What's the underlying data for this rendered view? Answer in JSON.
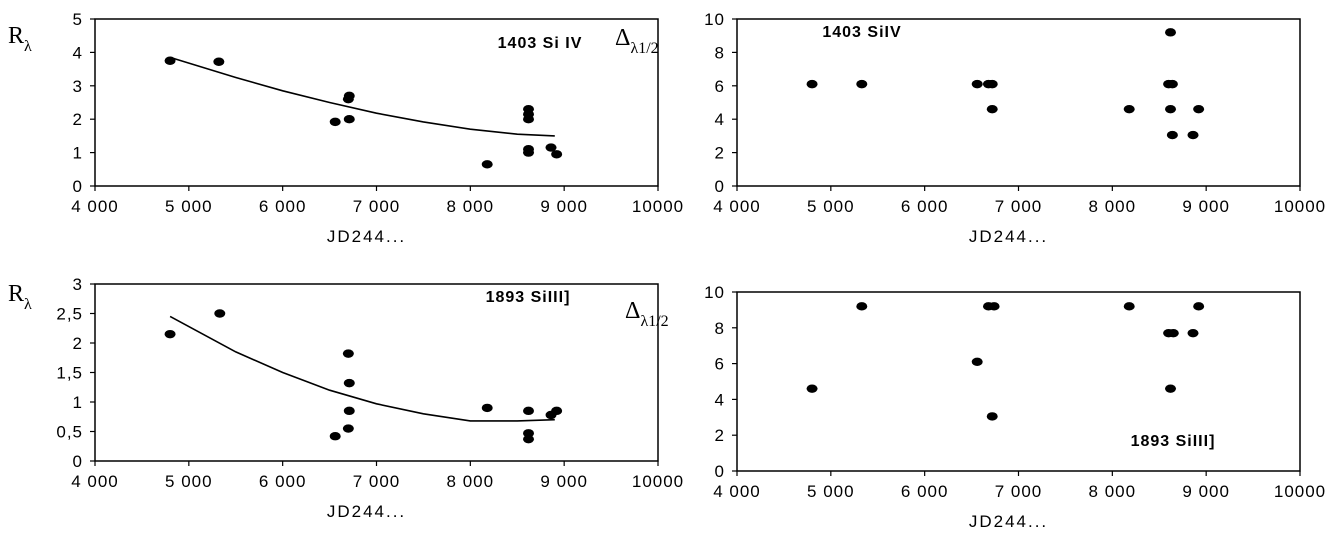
{
  "chart_data": [
    {
      "type": "scatter",
      "ylabel": "Rλ",
      "xlabel": "JD244...",
      "annotation": "1403 Si IV",
      "xlim": [
        4000,
        10000
      ],
      "ylim": [
        0,
        5
      ],
      "x_ticks": [
        "4 000",
        "5 000",
        "6 000",
        "7 000",
        "8 000",
        "9 000",
        "10000"
      ],
      "y_ticks": [
        "0",
        "1",
        "2",
        "3",
        "4",
        "5"
      ],
      "points": [
        {
          "x": 4800,
          "y": 3.75
        },
        {
          "x": 5320,
          "y": 3.72
        },
        {
          "x": 6560,
          "y": 1.92
        },
        {
          "x": 6700,
          "y": 2.6
        },
        {
          "x": 6710,
          "y": 2.7
        },
        {
          "x": 6710,
          "y": 2.0
        },
        {
          "x": 8180,
          "y": 0.65
        },
        {
          "x": 8620,
          "y": 2.3
        },
        {
          "x": 8620,
          "y": 2.15
        },
        {
          "x": 8620,
          "y": 2.0
        },
        {
          "x": 8620,
          "y": 1.1
        },
        {
          "x": 8620,
          "y": 1.0
        },
        {
          "x": 8860,
          "y": 1.15
        },
        {
          "x": 8920,
          "y": 0.95
        }
      ],
      "trend": {
        "x": [
          4800,
          5500,
          6000,
          6500,
          7000,
          7500,
          8000,
          8500,
          8900
        ],
        "y": [
          3.85,
          3.25,
          2.85,
          2.5,
          2.18,
          1.92,
          1.7,
          1.55,
          1.5
        ]
      }
    },
    {
      "type": "scatter",
      "ylabel": "Δλ1/2",
      "xlabel": "JD244...",
      "annotation": "1403 SiIV",
      "xlim": [
        4000,
        10000
      ],
      "ylim": [
        0,
        10
      ],
      "x_ticks": [
        "4 000",
        "5 000",
        "6 000",
        "7 000",
        "8 000",
        "9 000",
        "10000"
      ],
      "y_ticks": [
        "0",
        "2",
        "4",
        "6",
        "8",
        "10"
      ],
      "points": [
        {
          "x": 4800,
          "y": 6.1
        },
        {
          "x": 5330,
          "y": 6.1
        },
        {
          "x": 6560,
          "y": 6.1
        },
        {
          "x": 6680,
          "y": 6.1
        },
        {
          "x": 6720,
          "y": 6.1
        },
        {
          "x": 6720,
          "y": 4.6
        },
        {
          "x": 8180,
          "y": 4.6
        },
        {
          "x": 8620,
          "y": 9.2
        },
        {
          "x": 8600,
          "y": 6.1
        },
        {
          "x": 8640,
          "y": 6.1
        },
        {
          "x": 8620,
          "y": 4.6
        },
        {
          "x": 8640,
          "y": 3.05
        },
        {
          "x": 8860,
          "y": 3.05
        },
        {
          "x": 8920,
          "y": 4.6
        }
      ]
    },
    {
      "type": "scatter",
      "ylabel": "Rλ",
      "xlabel": "JD244...",
      "annotation": "1893 SiIII]",
      "xlim": [
        4000,
        10000
      ],
      "ylim": [
        0,
        3
      ],
      "x_ticks": [
        "4 000",
        "5 000",
        "6 000",
        "7 000",
        "8 000",
        "9 000",
        "10000"
      ],
      "y_ticks": [
        "0",
        "0,5",
        "1",
        "1,5",
        "2",
        "2,5",
        "3"
      ],
      "points": [
        {
          "x": 4800,
          "y": 2.15
        },
        {
          "x": 5330,
          "y": 2.5
        },
        {
          "x": 6560,
          "y": 0.42
        },
        {
          "x": 6700,
          "y": 1.82
        },
        {
          "x": 6710,
          "y": 1.32
        },
        {
          "x": 6710,
          "y": 0.85
        },
        {
          "x": 6700,
          "y": 0.55
        },
        {
          "x": 8180,
          "y": 0.9
        },
        {
          "x": 8620,
          "y": 0.85
        },
        {
          "x": 8620,
          "y": 0.47
        },
        {
          "x": 8620,
          "y": 0.37
        },
        {
          "x": 8860,
          "y": 0.78
        },
        {
          "x": 8920,
          "y": 0.85
        }
      ],
      "trend": {
        "x": [
          4800,
          5500,
          6000,
          6500,
          7000,
          7500,
          8000,
          8500,
          8900
        ],
        "y": [
          2.45,
          1.85,
          1.5,
          1.2,
          0.97,
          0.8,
          0.68,
          0.68,
          0.7
        ]
      }
    },
    {
      "type": "scatter",
      "ylabel": "Δλ1/2",
      "xlabel": "JD244...",
      "annotation": "1893 SiIII]",
      "xlim": [
        4000,
        10000
      ],
      "ylim": [
        0,
        10
      ],
      "x_ticks": [
        "4 000",
        "5 000",
        "6 000",
        "7 000",
        "8 000",
        "9 000",
        "10000"
      ],
      "y_ticks": [
        "0",
        "2",
        "4",
        "6",
        "8",
        "10"
      ],
      "points": [
        {
          "x": 4800,
          "y": 4.6
        },
        {
          "x": 5330,
          "y": 9.2
        },
        {
          "x": 6560,
          "y": 6.1
        },
        {
          "x": 6680,
          "y": 9.2
        },
        {
          "x": 6740,
          "y": 9.2
        },
        {
          "x": 6720,
          "y": 3.05
        },
        {
          "x": 8180,
          "y": 9.2
        },
        {
          "x": 8600,
          "y": 7.7
        },
        {
          "x": 8650,
          "y": 7.7
        },
        {
          "x": 8620,
          "y": 4.6
        },
        {
          "x": 8860,
          "y": 7.7
        },
        {
          "x": 8920,
          "y": 9.2
        }
      ]
    }
  ]
}
